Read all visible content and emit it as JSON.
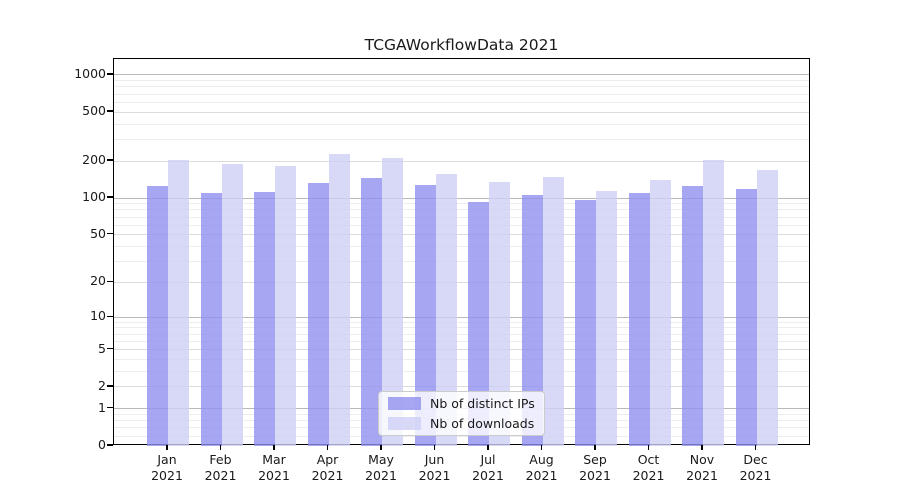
{
  "window": {
    "background": "#ffffff"
  },
  "chart_data": {
    "type": "bar",
    "title": "TCGAWorkflowData 2021",
    "categories": [
      "Jan 2021",
      "Feb 2021",
      "Mar 2021",
      "Apr 2021",
      "May 2021",
      "Jun 2021",
      "Jul 2021",
      "Aug 2021",
      "Sep 2021",
      "Oct 2021",
      "Nov 2021",
      "Dec 2021"
    ],
    "series": [
      {
        "name": "Nb of distinct IPs",
        "color": "rgba(144,144,239,0.8)",
        "values": [
          126,
          111,
          113,
          133,
          145,
          129,
          93,
          106,
          97,
          109,
          126,
          119
        ]
      },
      {
        "name": "Nb of downloads",
        "color": "rgba(206,206,245,0.8)",
        "values": [
          205,
          190,
          182,
          227,
          211,
          156,
          135,
          148,
          115,
          141,
          203,
          170
        ]
      }
    ],
    "xlabel": "",
    "ylabel": "",
    "y_scale": "symlog (position proportional to log10(1+value))",
    "y_ticks": [
      0,
      1,
      2,
      5,
      10,
      20,
      50,
      100,
      200,
      500,
      1000
    ],
    "y_minor_ticks": [
      0.2,
      0.4,
      0.6,
      0.8,
      3,
      4,
      6,
      7,
      8,
      9,
      30,
      40,
      60,
      70,
      80,
      90,
      300,
      400,
      600,
      700,
      800,
      900
    ],
    "y_decade_ticks": [
      1,
      10,
      100,
      1000
    ],
    "ylim": [
      0,
      1344
    ],
    "grid": true,
    "legend_position": "bottom-center"
  },
  "colors": {
    "axis": "#000000",
    "text": "#1a1a1a",
    "grid_decade": "#b9b9b9",
    "grid_major": "#dcdcdc",
    "grid_minor": "#ededed",
    "legend_border": "#cccccc"
  }
}
